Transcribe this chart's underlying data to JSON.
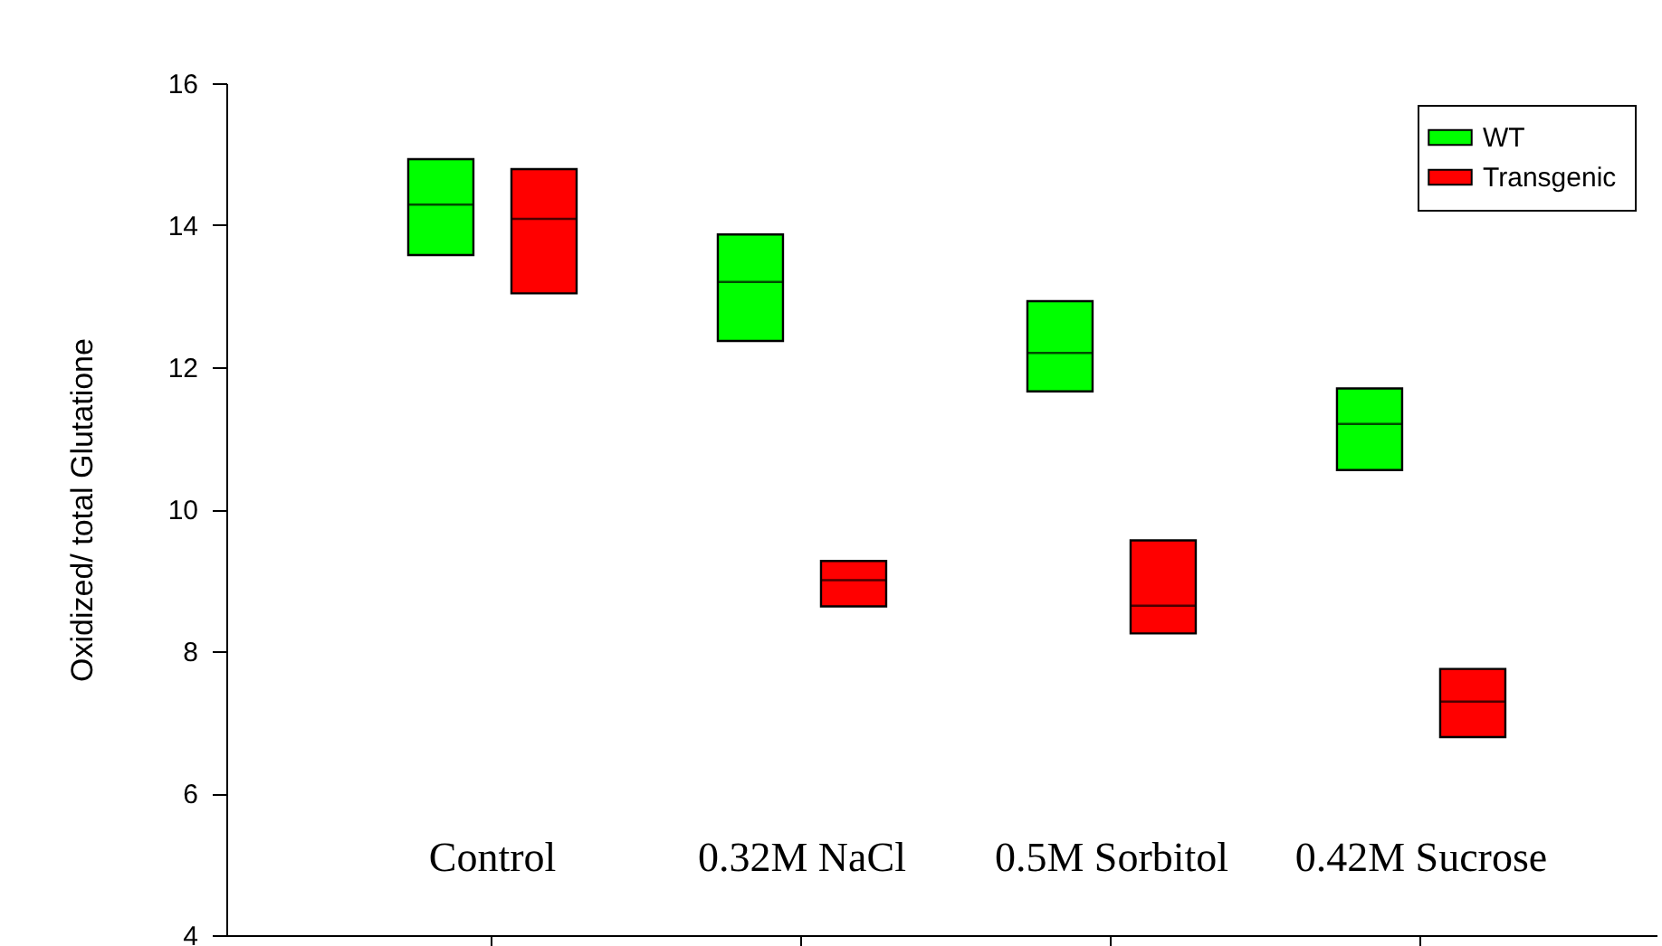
{
  "chart_data": {
    "type": "box",
    "ylabel": "Oxidized/ total Glutatione",
    "categories": [
      "Control",
      "0.32M NaCl",
      "0.5M Sorbitol",
      "0.42M Sucrose"
    ],
    "ylim": [
      4,
      16
    ],
    "yticks": [
      4,
      6,
      8,
      10,
      12,
      14,
      16
    ],
    "legend": "top right",
    "series": [
      {
        "name": "WT",
        "color": "#00ff00",
        "boxes": [
          {
            "q1": 13.58,
            "median": 14.29,
            "q3": 14.93
          },
          {
            "q1": 12.37,
            "median": 13.2,
            "q3": 13.87
          },
          {
            "q1": 11.66,
            "median": 12.2,
            "q3": 12.93
          },
          {
            "q1": 10.55,
            "median": 11.2,
            "q3": 11.7
          }
        ]
      },
      {
        "name": "Transgenic",
        "color": "#ff0000",
        "boxes": [
          {
            "q1": 13.04,
            "median": 14.09,
            "q3": 14.79
          },
          {
            "q1": 8.63,
            "median": 9.0,
            "q3": 9.27
          },
          {
            "q1": 8.25,
            "median": 8.64,
            "q3": 9.56
          },
          {
            "q1": 6.79,
            "median": 7.29,
            "q3": 7.75
          }
        ]
      }
    ]
  }
}
